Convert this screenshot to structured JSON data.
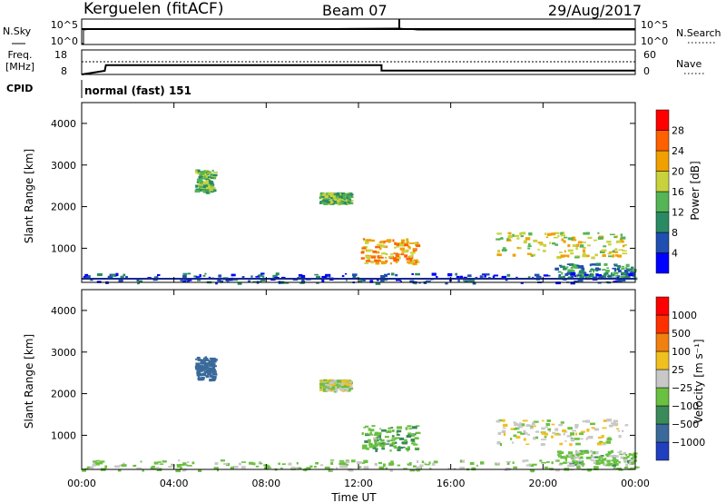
{
  "header": {
    "station": "Kerguelen (fitACF)",
    "beam": "Beam 07",
    "date": "29/Aug/2017"
  },
  "noise_panel": {
    "left_label": "N.Sky",
    "right_label": "N.Search",
    "left_ticks": [
      "10^5",
      "10^0"
    ],
    "right_ticks": [
      "10^5",
      "10^0"
    ]
  },
  "freq_panel": {
    "left_label_line1": "Freq.",
    "left_label_line2": "[MHz]",
    "left_ticks": [
      "18",
      "8"
    ],
    "right_label": "Nave",
    "right_ticks": [
      "60",
      "0"
    ],
    "freq_steps": [
      {
        "t": 0.0,
        "mhz": 8.0
      },
      {
        "t": 1.0,
        "mhz": 9.5
      },
      {
        "t": 1.05,
        "mhz": 11.8
      },
      {
        "t": 13.0,
        "mhz": 11.8
      },
      {
        "t": 13.0,
        "mhz": 9.6
      },
      {
        "t": 24.0,
        "mhz": 9.6
      }
    ]
  },
  "cpid": {
    "label": "CPID",
    "mode": "normal (fast) 151"
  },
  "chart_data": [
    {
      "type": "heatmap",
      "name": "power",
      "ylabel": "Slant Range [km]",
      "xlabel": "Time UT",
      "xlim": [
        0,
        24
      ],
      "ylim": [
        180,
        4500
      ],
      "y_ticks": [
        "4000",
        "3000",
        "2000",
        "1000"
      ],
      "y_tick_values": [
        4000,
        3000,
        2000,
        1000
      ],
      "colorbar_label": "Power [dB]",
      "colorbar_ticks": [
        "28",
        "24",
        "20",
        "16",
        "12",
        "8",
        "4"
      ],
      "colorbar_colors": [
        "#0000ff",
        "#1f4fb0",
        "#2a8a64",
        "#55b455",
        "#c8d23c",
        "#f0a000",
        "#ff6000",
        "#ff0000"
      ],
      "echo_regions": [
        {
          "t0": 4.9,
          "t1": 5.7,
          "r0": 2350,
          "r1": 2900,
          "level": 3
        },
        {
          "t0": 10.3,
          "t1": 11.6,
          "r0": 2100,
          "r1": 2350,
          "level": 3
        },
        {
          "t0": 12.1,
          "t1": 14.5,
          "r0": 650,
          "r1": 1250,
          "level": 5
        },
        {
          "t0": 17.9,
          "t1": 23.6,
          "r0": 800,
          "r1": 1400,
          "level": 4
        },
        {
          "t0": 20.5,
          "t1": 23.9,
          "r0": 300,
          "r1": 650,
          "level": 2
        },
        {
          "t0": 0.0,
          "t1": 24.0,
          "r0": 180,
          "r1": 420,
          "level": 1
        }
      ]
    },
    {
      "type": "heatmap",
      "name": "velocity",
      "ylabel": "Slant Range [km]",
      "xlabel": "Time UT",
      "xlim": [
        0,
        24
      ],
      "ylim": [
        180,
        4500
      ],
      "y_ticks": [
        "4000",
        "3000",
        "2000",
        "1000"
      ],
      "y_tick_values": [
        4000,
        3000,
        2000,
        1000
      ],
      "x_ticks": [
        "00:00",
        "04:00",
        "08:00",
        "12:00",
        "16:00",
        "20:00",
        "00:00"
      ],
      "x_tick_values": [
        0,
        4,
        8,
        12,
        16,
        20,
        24
      ],
      "colorbar_label": "Velocity [m s⁻¹]",
      "colorbar_ticks": [
        "1000",
        "500",
        "100",
        "25",
        "−25",
        "−100",
        "−500",
        "−1000"
      ],
      "colorbar_colors": [
        "#2040c0",
        "#3a6a9a",
        "#3a8a5a",
        "#6ac040",
        "#c8c8c8",
        "#f0c020",
        "#f08010",
        "#ff3000",
        "#ff0000"
      ],
      "echo_regions": [
        {
          "t0": 4.9,
          "t1": 5.7,
          "r0": 2350,
          "r1": 2900,
          "vel": -600
        },
        {
          "t0": 10.3,
          "t1": 11.6,
          "r0": 2100,
          "r1": 2350,
          "vel": 0
        },
        {
          "t0": 12.1,
          "t1": 14.5,
          "r0": 650,
          "r1": 1250,
          "vel": -80
        },
        {
          "t0": 17.9,
          "t1": 23.6,
          "r0": 800,
          "r1": 1400,
          "vel": 0
        },
        {
          "t0": 20.5,
          "t1": 23.9,
          "r0": 300,
          "r1": 650,
          "vel": -60
        },
        {
          "t0": 0.0,
          "t1": 24.0,
          "r0": 180,
          "r1": 420,
          "vel": -40
        }
      ]
    }
  ]
}
